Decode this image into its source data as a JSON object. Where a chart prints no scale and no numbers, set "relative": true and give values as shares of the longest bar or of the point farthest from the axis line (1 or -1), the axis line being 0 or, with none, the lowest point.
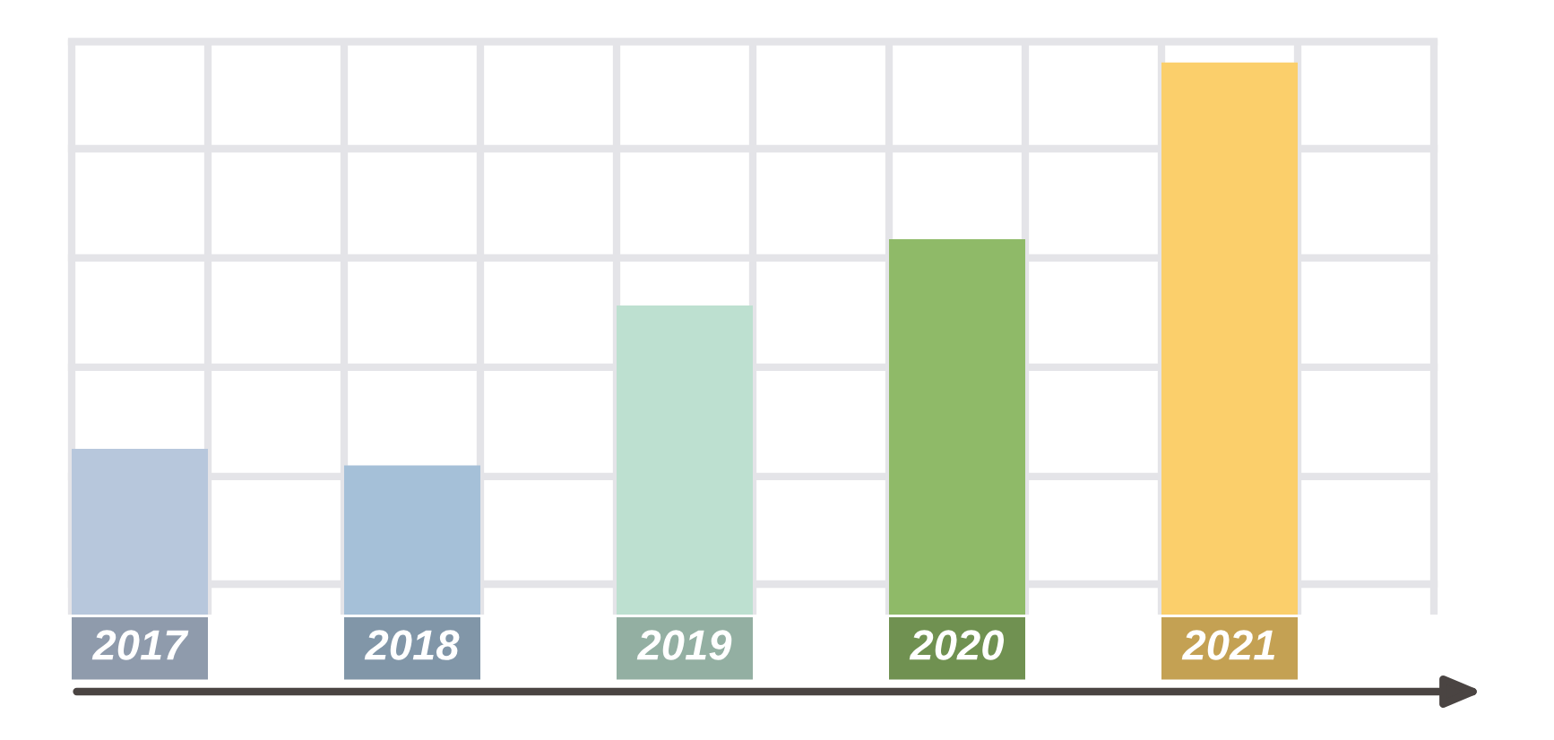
{
  "chart_data": {
    "type": "bar",
    "relative": true,
    "grid": true,
    "categories": [
      "2017",
      "2018",
      "2019",
      "2020",
      "2021"
    ],
    "values": [
      0.3,
      0.27,
      0.56,
      0.68,
      1.0
    ],
    "colors": [
      "#b7c7dc",
      "#a5c0d8",
      "#bde0d0",
      "#8fba68",
      "#fbcf6b"
    ]
  }
}
